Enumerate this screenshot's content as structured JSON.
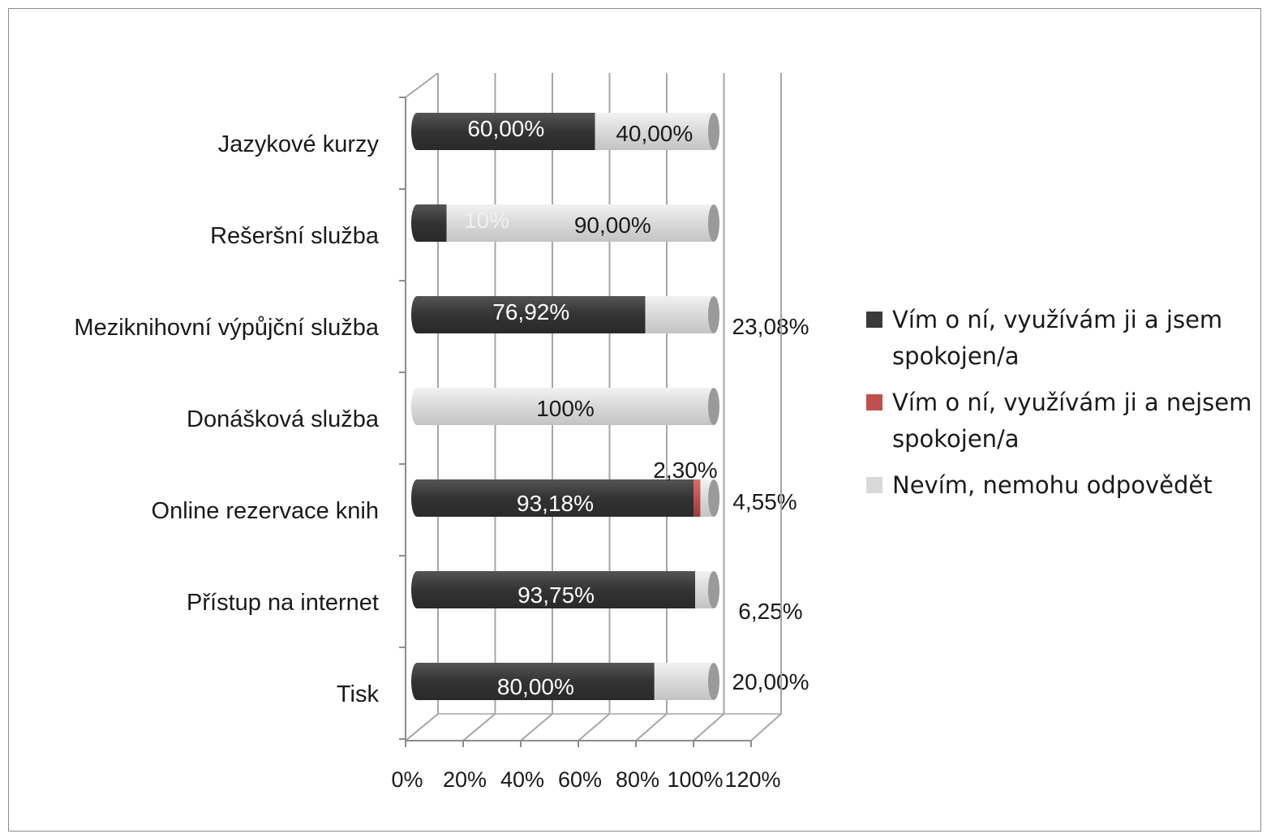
{
  "chart_data": {
    "type": "bar",
    "orientation": "horizontal",
    "stacked": "100%",
    "title": "",
    "xlabel": "",
    "ylabel": "",
    "xlim": [
      0,
      120
    ],
    "x_ticks": [
      "0%",
      "20%",
      "40%",
      "60%",
      "80%",
      "100%",
      "120%"
    ],
    "grid": true,
    "legend_position": "right",
    "categories": [
      "Jazykové kurzy",
      "Rešeršní služba",
      "Meziknihovní výpůjční služba",
      "Donášková služba",
      "Online rezervace knih",
      "Přístup na internet",
      "Tisk"
    ],
    "series": [
      {
        "name": "Vím o ní, využívám ji a jsem spokojen/a",
        "color": "#3a3a3a",
        "values": [
          60.0,
          10.0,
          76.92,
          0,
          93.18,
          93.75,
          80.0
        ],
        "labels": [
          "60,00%",
          "10%",
          "76,92%",
          "",
          "93,18%",
          "93,75%",
          "80,00%"
        ]
      },
      {
        "name": "Vím o ní, využívám ji a nejsem spokojen/a",
        "color": "#c0504d",
        "values": [
          0,
          0,
          0,
          0,
          2.3,
          0,
          0
        ],
        "labels": [
          "",
          "",
          "",
          "",
          "2,30%",
          "",
          ""
        ]
      },
      {
        "name": "Nevím, nemohu odpovědět",
        "color": "#d9d9d9",
        "values": [
          40.0,
          90.0,
          23.08,
          100,
          4.55,
          6.25,
          20.0
        ],
        "labels": [
          "40,00%",
          "90,00%",
          "23,08%",
          "100%",
          "4,55%",
          "6,25%",
          "20,00%"
        ]
      }
    ]
  }
}
